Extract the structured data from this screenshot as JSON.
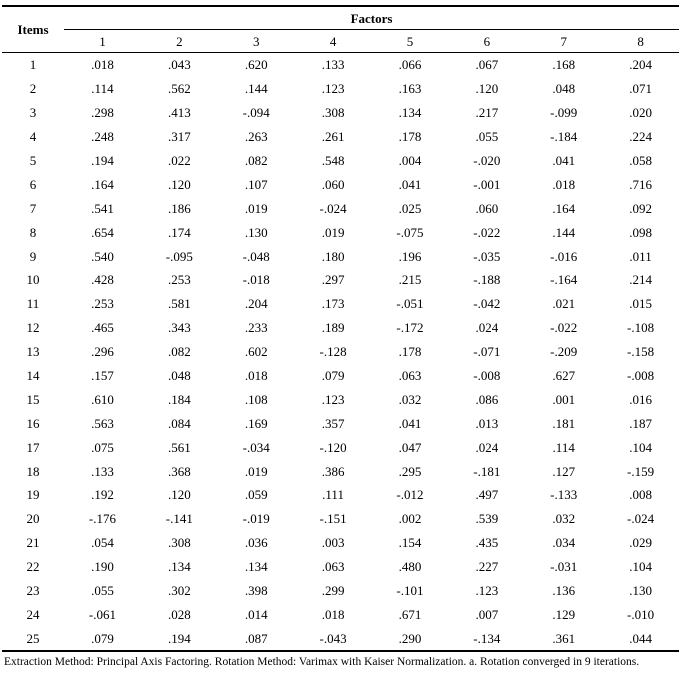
{
  "table": {
    "items_header": "Items",
    "factors_header": "Factors",
    "factor_columns": [
      "1",
      "2",
      "3",
      "4",
      "5",
      "6",
      "7",
      "8"
    ],
    "rows": [
      {
        "item": "1",
        "values": [
          ".018",
          ".043",
          ".620",
          ".133",
          ".066",
          ".067",
          ".168",
          ".204"
        ]
      },
      {
        "item": "2",
        "values": [
          ".114",
          ".562",
          ".144",
          ".123",
          ".163",
          ".120",
          ".048",
          ".071"
        ]
      },
      {
        "item": "3",
        "values": [
          ".298",
          ".413",
          "-.094",
          ".308",
          ".134",
          ".217",
          "-.099",
          ".020"
        ]
      },
      {
        "item": "4",
        "values": [
          ".248",
          ".317",
          ".263",
          ".261",
          ".178",
          ".055",
          "-.184",
          ".224"
        ]
      },
      {
        "item": "5",
        "values": [
          ".194",
          ".022",
          ".082",
          ".548",
          ".004",
          "-.020",
          ".041",
          ".058"
        ]
      },
      {
        "item": "6",
        "values": [
          ".164",
          ".120",
          ".107",
          ".060",
          ".041",
          "-.001",
          ".018",
          ".716"
        ]
      },
      {
        "item": "7",
        "values": [
          ".541",
          ".186",
          ".019",
          "-.024",
          ".025",
          ".060",
          ".164",
          ".092"
        ]
      },
      {
        "item": "8",
        "values": [
          ".654",
          ".174",
          ".130",
          ".019",
          "-.075",
          "-.022",
          ".144",
          ".098"
        ]
      },
      {
        "item": "9",
        "values": [
          ".540",
          "-.095",
          "-.048",
          ".180",
          ".196",
          "-.035",
          "-.016",
          ".011"
        ]
      },
      {
        "item": "10",
        "values": [
          ".428",
          ".253",
          "-.018",
          ".297",
          ".215",
          "-.188",
          "-.164",
          ".214"
        ]
      },
      {
        "item": "11",
        "values": [
          ".253",
          ".581",
          ".204",
          ".173",
          "-.051",
          "-.042",
          ".021",
          ".015"
        ]
      },
      {
        "item": "12",
        "values": [
          ".465",
          ".343",
          ".233",
          ".189",
          "-.172",
          ".024",
          "-.022",
          "-.108"
        ]
      },
      {
        "item": "13",
        "values": [
          ".296",
          ".082",
          ".602",
          "-.128",
          ".178",
          "-.071",
          "-.209",
          "-.158"
        ]
      },
      {
        "item": "14",
        "values": [
          ".157",
          ".048",
          ".018",
          ".079",
          ".063",
          "-.008",
          ".627",
          "-.008"
        ]
      },
      {
        "item": "15",
        "values": [
          ".610",
          ".184",
          ".108",
          ".123",
          ".032",
          ".086",
          ".001",
          ".016"
        ]
      },
      {
        "item": "16",
        "values": [
          ".563",
          ".084",
          ".169",
          ".357",
          ".041",
          ".013",
          ".181",
          ".187"
        ]
      },
      {
        "item": "17",
        "values": [
          ".075",
          ".561",
          "-.034",
          "-.120",
          ".047",
          ".024",
          ".114",
          ".104"
        ]
      },
      {
        "item": "18",
        "values": [
          ".133",
          ".368",
          ".019",
          ".386",
          ".295",
          "-.181",
          ".127",
          "-.159"
        ]
      },
      {
        "item": "19",
        "values": [
          ".192",
          ".120",
          ".059",
          ".111",
          "-.012",
          ".497",
          "-.133",
          ".008"
        ]
      },
      {
        "item": "20",
        "values": [
          "-.176",
          "-.141",
          "-.019",
          "-.151",
          ".002",
          ".539",
          ".032",
          "-.024"
        ]
      },
      {
        "item": "21",
        "values": [
          ".054",
          ".308",
          ".036",
          ".003",
          ".154",
          ".435",
          ".034",
          ".029"
        ]
      },
      {
        "item": "22",
        "values": [
          ".190",
          ".134",
          ".134",
          ".063",
          ".480",
          ".227",
          "-.031",
          ".104"
        ]
      },
      {
        "item": "23",
        "values": [
          ".055",
          ".302",
          ".398",
          ".299",
          "-.101",
          ".123",
          ".136",
          ".130"
        ]
      },
      {
        "item": "24",
        "values": [
          "-.061",
          ".028",
          ".014",
          ".018",
          ".671",
          ".007",
          ".129",
          "-.010"
        ]
      },
      {
        "item": "25",
        "values": [
          ".079",
          ".194",
          ".087",
          "-.043",
          ".290",
          "-.134",
          ".361",
          ".044"
        ]
      }
    ]
  },
  "footnote": "Extraction Method: Principal Axis Factoring. Rotation Method: Varimax with Kaiser Normalization. a. Rotation converged in 9 iterations."
}
